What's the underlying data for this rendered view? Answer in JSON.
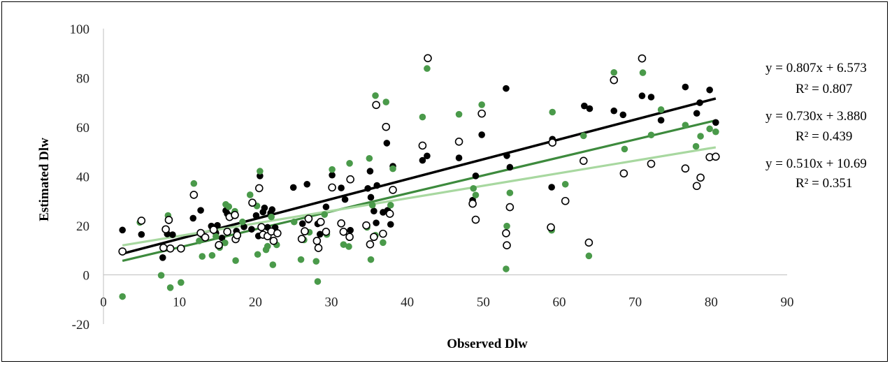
{
  "chart_data": {
    "type": "scatter",
    "xlabel": "Observed Dlw",
    "ylabel": "Estimated Dlw",
    "xlim": [
      0,
      90
    ],
    "ylim": [
      -20,
      100
    ],
    "x_ticks": [
      "0",
      "10",
      "20",
      "30",
      "40",
      "50",
      "60",
      "70",
      "80",
      "90"
    ],
    "y_ticks": [
      "-20",
      "0",
      "20",
      "40",
      "60",
      "80",
      "100"
    ],
    "grid": false,
    "series": [
      {
        "marker": "filled-circle",
        "color": "#000000",
        "trendline": {
          "slope": 0.807,
          "intercept": 6.573,
          "equation": "y = 0.807x + 6.573",
          "r2": "R² = 0.807",
          "color": "#000000"
        },
        "points": [
          [
            2.5,
            18.2
          ],
          [
            5,
            16.4
          ],
          [
            7.8,
            7
          ],
          [
            8.4,
            16.6
          ],
          [
            8.6,
            22
          ],
          [
            9.1,
            16.3
          ],
          [
            11.8,
            23
          ],
          [
            12.8,
            26.2
          ],
          [
            13,
            16.2
          ],
          [
            14.2,
            19.8
          ],
          [
            14.8,
            17
          ],
          [
            15,
            20.1
          ],
          [
            15.1,
            11.8
          ],
          [
            15.6,
            15
          ],
          [
            16.1,
            26.1
          ],
          [
            16.3,
            24.8
          ],
          [
            17.1,
            24.1
          ],
          [
            17.5,
            17.8
          ],
          [
            18.5,
            19.5
          ],
          [
            19.5,
            18.5
          ],
          [
            20.1,
            24.1
          ],
          [
            20.4,
            15.8
          ],
          [
            20.6,
            40.2
          ],
          [
            21,
            25.5
          ],
          [
            21.2,
            27.2
          ],
          [
            21.6,
            19.3
          ],
          [
            22,
            25.1
          ],
          [
            22.2,
            26.5
          ],
          [
            22.6,
            19.2
          ],
          [
            25,
            35.5
          ],
          [
            26.2,
            20.8
          ],
          [
            26.8,
            36.8
          ],
          [
            27,
            22.3
          ],
          [
            28.2,
            20.7
          ],
          [
            28.5,
            16.5
          ],
          [
            29.3,
            27.6
          ],
          [
            30.1,
            40.5
          ],
          [
            31.3,
            35.3
          ],
          [
            31.8,
            30.6
          ],
          [
            32.5,
            18.1
          ],
          [
            34.8,
            35.1
          ],
          [
            35.1,
            42.1
          ],
          [
            35.2,
            31.5
          ],
          [
            35.6,
            25.9
          ],
          [
            35.9,
            21.1
          ],
          [
            36,
            36.3
          ],
          [
            36.8,
            25.4
          ],
          [
            37.3,
            53.5
          ],
          [
            37.4,
            26.2
          ],
          [
            37.8,
            20.5
          ],
          [
            38.1,
            44.1
          ],
          [
            42,
            46.5
          ],
          [
            42.6,
            48.3
          ],
          [
            46.8,
            47.5
          ],
          [
            48.6,
            30.3
          ],
          [
            49,
            40.2
          ],
          [
            49.8,
            56.9
          ],
          [
            53,
            75.7
          ],
          [
            53.1,
            48.4
          ],
          [
            53.5,
            43.7
          ],
          [
            59,
            35.6
          ],
          [
            59.1,
            55.1
          ],
          [
            63.3,
            68.6
          ],
          [
            64,
            67.5
          ],
          [
            67.2,
            66.6
          ],
          [
            68.4,
            65
          ],
          [
            70.9,
            72.7
          ],
          [
            72.1,
            72.2
          ],
          [
            73.4,
            62.8
          ],
          [
            76.6,
            76.3
          ],
          [
            78.1,
            65.6
          ],
          [
            78.5,
            69.9
          ],
          [
            79.8,
            75.1
          ],
          [
            80.6,
            61.9
          ]
        ]
      },
      {
        "marker": "filled-circle",
        "color": "#4a9a4a",
        "trendline": {
          "slope": 0.73,
          "intercept": 3.88,
          "equation": "y = 0.730x + 3.880",
          "r2": "R² = 0.439",
          "color": "#3d8a3d"
        },
        "points": [
          [
            2.5,
            -8.8
          ],
          [
            4.8,
            21.3
          ],
          [
            7.6,
            -0.2
          ],
          [
            8.5,
            24.1
          ],
          [
            8.8,
            -5.2
          ],
          [
            10.2,
            -3.1
          ],
          [
            11.9,
            37.1
          ],
          [
            12.6,
            13.8
          ],
          [
            13,
            7.5
          ],
          [
            14.3,
            7.9
          ],
          [
            14.8,
            15.6
          ],
          [
            15.3,
            11.1
          ],
          [
            16,
            13
          ],
          [
            16.1,
            28.6
          ],
          [
            16.5,
            27.7
          ],
          [
            17.1,
            24.5
          ],
          [
            17.3,
            25.8
          ],
          [
            17.4,
            5.8
          ],
          [
            18.3,
            21.5
          ],
          [
            19.3,
            32.5
          ],
          [
            20.2,
            28
          ],
          [
            20.3,
            8.3
          ],
          [
            20.6,
            42.1
          ],
          [
            21.4,
            10.2
          ],
          [
            21.6,
            11.6
          ],
          [
            22.1,
            23.5
          ],
          [
            22.3,
            4.1
          ],
          [
            22.8,
            12.2
          ],
          [
            25.1,
            21.5
          ],
          [
            26,
            6.2
          ],
          [
            26.4,
            14.2
          ],
          [
            27.1,
            17.3
          ],
          [
            28,
            5.5
          ],
          [
            28.2,
            -2.7
          ],
          [
            29.1,
            24.5
          ],
          [
            29.4,
            16.4
          ],
          [
            30.1,
            42.8
          ],
          [
            31.6,
            12.3
          ],
          [
            32.3,
            11.5
          ],
          [
            32.4,
            45.3
          ],
          [
            34.7,
            19.3
          ],
          [
            35,
            47.3
          ],
          [
            35.2,
            6.2
          ],
          [
            35.4,
            28.3
          ],
          [
            35.8,
            16.1
          ],
          [
            35.8,
            72.8
          ],
          [
            36.8,
            13.1
          ],
          [
            37.2,
            70.2
          ],
          [
            37.8,
            28.3
          ],
          [
            38.1,
            43.1
          ],
          [
            42,
            64.1
          ],
          [
            42.6,
            83.8
          ],
          [
            46.8,
            65.2
          ],
          [
            48.7,
            35.1
          ],
          [
            49,
            32.4
          ],
          [
            49.8,
            69.1
          ],
          [
            53,
            2.4
          ],
          [
            53.1,
            19.8
          ],
          [
            53.5,
            33.3
          ],
          [
            59,
            18.1
          ],
          [
            59.1,
            66.1
          ],
          [
            60.8,
            36.8
          ],
          [
            63.2,
            56.5
          ],
          [
            63.9,
            7.7
          ],
          [
            67.2,
            82.2
          ],
          [
            68.6,
            51.1
          ],
          [
            71,
            82.1
          ],
          [
            72.1,
            56.8
          ],
          [
            73.4,
            67.1
          ],
          [
            76.6,
            60.8
          ],
          [
            78,
            52.2
          ],
          [
            78.6,
            56.3
          ],
          [
            79.8,
            59.3
          ],
          [
            80.6,
            58.1
          ]
        ]
      },
      {
        "marker": "open-circle",
        "color": "#000000",
        "trendline": {
          "slope": 0.51,
          "intercept": 10.69,
          "equation": "y = 0.510x + 10.69",
          "r2": "R² = 0.351",
          "color": "#a8d8a0"
        },
        "points": [
          [
            2.5,
            9.5
          ],
          [
            5,
            22
          ],
          [
            7.9,
            11
          ],
          [
            8.2,
            18.5
          ],
          [
            8.6,
            22.3
          ],
          [
            8.8,
            10.7
          ],
          [
            10.2,
            10.7
          ],
          [
            11.9,
            32.5
          ],
          [
            12.8,
            17
          ],
          [
            13.4,
            15.2
          ],
          [
            14.5,
            18.3
          ],
          [
            15.2,
            12.1
          ],
          [
            16.3,
            17.5
          ],
          [
            16.6,
            23.5
          ],
          [
            17.3,
            24.3
          ],
          [
            17.4,
            14.5
          ],
          [
            17.6,
            16.1
          ],
          [
            19.6,
            29.3
          ],
          [
            20.5,
            35.2
          ],
          [
            20.8,
            19.4
          ],
          [
            21,
            16.3
          ],
          [
            21.6,
            15.7
          ],
          [
            22.1,
            17.6
          ],
          [
            22.4,
            13.8
          ],
          [
            22.9,
            16.9
          ],
          [
            26.1,
            14.6
          ],
          [
            26.5,
            17.7
          ],
          [
            27,
            22.8
          ],
          [
            28.1,
            13.8
          ],
          [
            28.3,
            10.9
          ],
          [
            28.6,
            21.5
          ],
          [
            29.3,
            17.5
          ],
          [
            30.1,
            35.5
          ],
          [
            31.3,
            20.9
          ],
          [
            31.6,
            17.5
          ],
          [
            32.4,
            15.4
          ],
          [
            32.5,
            38.8
          ],
          [
            34.6,
            20.1
          ],
          [
            35.1,
            12.4
          ],
          [
            35.6,
            15.4
          ],
          [
            35.9,
            69
          ],
          [
            36.8,
            16.7
          ],
          [
            37.2,
            60.1
          ],
          [
            37.7,
            24.8
          ],
          [
            38.1,
            34.5
          ],
          [
            42,
            52.5
          ],
          [
            42.7,
            88
          ],
          [
            46.8,
            54.1
          ],
          [
            48.6,
            28.9
          ],
          [
            49,
            22.4
          ],
          [
            49.8,
            65.5
          ],
          [
            53,
            16.9
          ],
          [
            53.1,
            12
          ],
          [
            53.5,
            27.5
          ],
          [
            58.9,
            19.3
          ],
          [
            59.1,
            53.7
          ],
          [
            60.8,
            30
          ],
          [
            63.2,
            46.3
          ],
          [
            63.9,
            13.1
          ],
          [
            67.2,
            79.1
          ],
          [
            68.5,
            41.2
          ],
          [
            70.9,
            87.9
          ],
          [
            72.1,
            45.1
          ],
          [
            76.6,
            43.2
          ],
          [
            78.1,
            36.1
          ],
          [
            78.6,
            39.5
          ],
          [
            79.8,
            47.8
          ],
          [
            80.6,
            48
          ]
        ]
      }
    ]
  }
}
